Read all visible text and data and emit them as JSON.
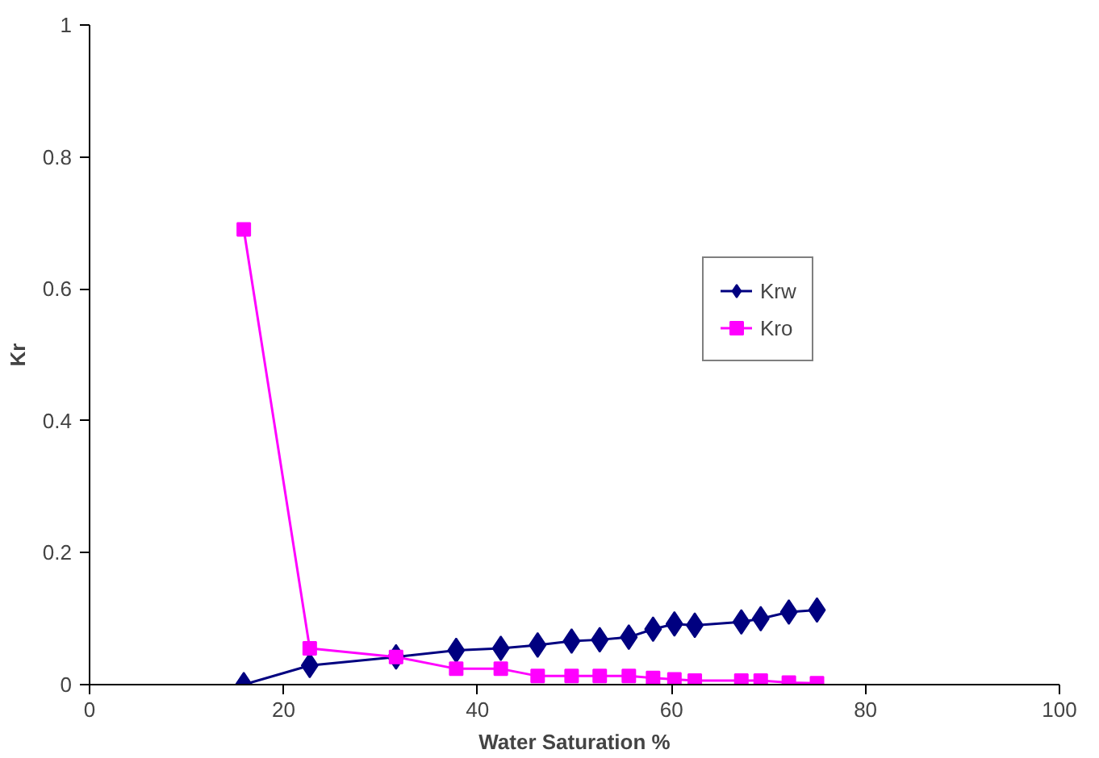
{
  "chart_data": {
    "type": "line",
    "xlabel": "Water Saturation %",
    "ylabel": "Kr",
    "xlim": [
      0,
      100
    ],
    "ylim": [
      0,
      1
    ],
    "xticks": [
      0,
      20,
      40,
      60,
      80,
      100
    ],
    "yticks": [
      0,
      0.2,
      0.4,
      0.6,
      0.8,
      1
    ],
    "grid": false,
    "legend": "right",
    "line_style": "solid",
    "x": [
      15.9,
      22.7,
      31.6,
      37.8,
      42.4,
      46.2,
      49.7,
      52.6,
      55.6,
      58.1,
      60.3,
      62.4,
      67.2,
      69.2,
      72.1,
      75.0
    ],
    "series": [
      {
        "name": "Krw",
        "color": "#000080",
        "marker": "diamond",
        "values": [
          0,
          0.029,
          0.042,
          0.052,
          0.055,
          0.06,
          0.066,
          0.068,
          0.072,
          0.084,
          0.092,
          0.09,
          0.095,
          0.1,
          0.11,
          0.113
        ]
      },
      {
        "name": "Kro",
        "color": "#ff00ff",
        "marker": "square",
        "values": [
          0.69,
          0.055,
          0.042,
          0.024,
          0.024,
          0.013,
          0.013,
          0.013,
          0.013,
          0.01,
          0.008,
          0.006,
          0.006,
          0.006,
          0.003,
          0.002
        ]
      }
    ]
  }
}
